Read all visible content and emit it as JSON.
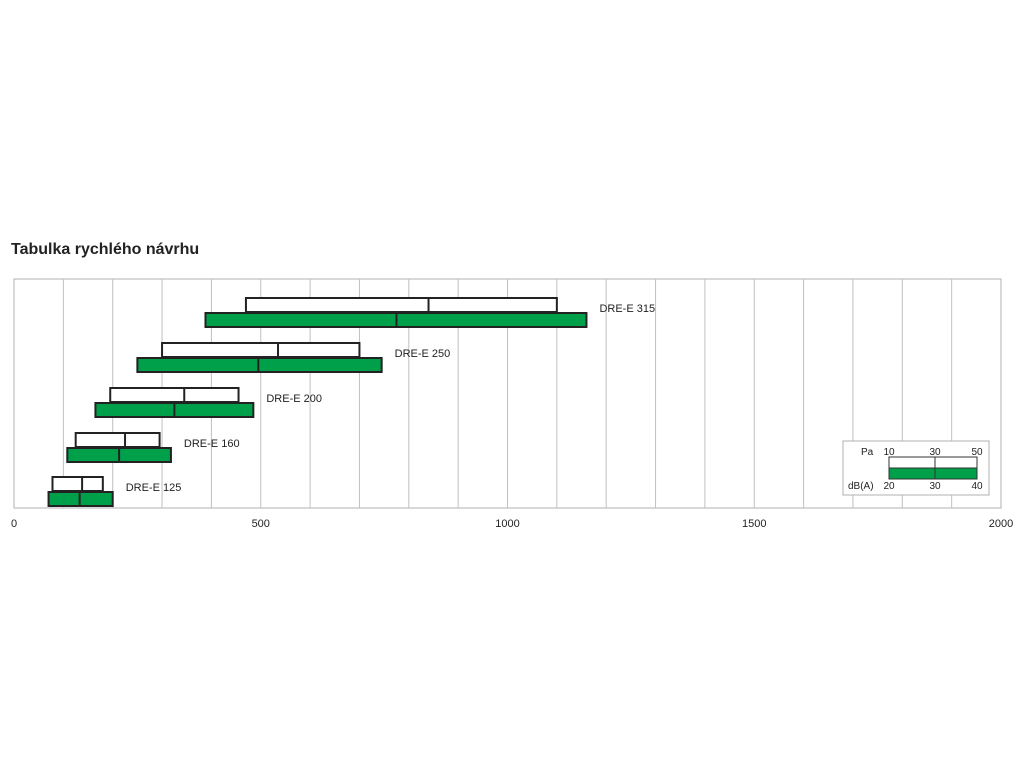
{
  "chart_data": {
    "type": "bar",
    "title": "Tabulka rychlého návrhu",
    "xlabel": "",
    "ylabel": "",
    "xlim": [
      0,
      2000
    ],
    "x_ticks": [
      0,
      500,
      1000,
      1500,
      2000
    ],
    "grid": true,
    "grid_step": 100,
    "colors": {
      "pa_fill": "#ffffff",
      "db_fill": "#00a04a",
      "outline": "#222222",
      "grid": "#c0c0c0"
    },
    "series": [
      {
        "name": "DRE-E 315",
        "pa_range": [
          470,
          840,
          1100
        ],
        "db_range": [
          388,
          775,
          1160
        ]
      },
      {
        "name": "DRE-E 250",
        "pa_range": [
          300,
          535,
          700
        ],
        "db_range": [
          250,
          495,
          745
        ]
      },
      {
        "name": "DRE-E 200",
        "pa_range": [
          195,
          345,
          455
        ],
        "db_range": [
          165,
          325,
          485
        ]
      },
      {
        "name": "DRE-E 160",
        "pa_range": [
          125,
          225,
          295
        ],
        "db_range": [
          108,
          213,
          318
        ]
      },
      {
        "name": "DRE-E 125",
        "pa_range": [
          78,
          138,
          180
        ],
        "db_range": [
          70,
          133,
          200
        ]
      }
    ],
    "legend": {
      "position": "bottom-right",
      "pa_label": "Pa",
      "pa_values": [
        "10",
        "30",
        "50"
      ],
      "db_label": "dB(A)",
      "db_values": [
        "20",
        "30",
        "40"
      ]
    }
  }
}
